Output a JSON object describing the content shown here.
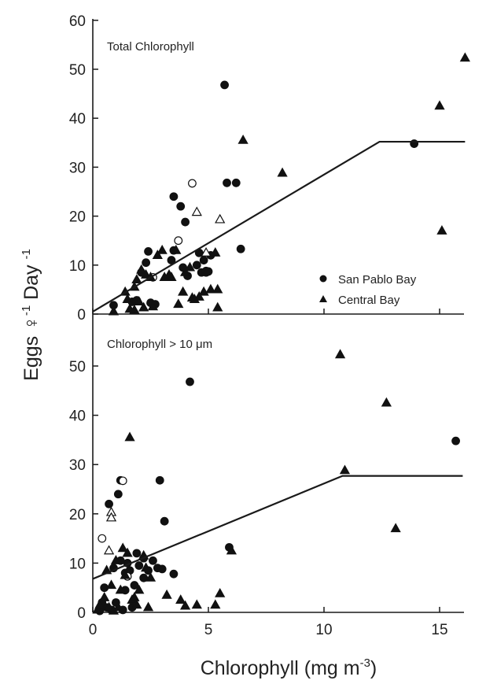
{
  "chart_data": [
    {
      "type": "scatter",
      "panel_label": "Total Chlorophyll",
      "xlim": [
        0,
        17
      ],
      "ylim": [
        0,
        60
      ],
      "y_ticks": [
        0,
        10,
        20,
        30,
        40,
        50,
        60
      ],
      "x_ticks": [
        0,
        5,
        10,
        15
      ],
      "legend": {
        "placement": "lower-right",
        "entries": [
          {
            "marker": "circle",
            "label": "San Pablo Bay"
          },
          {
            "marker": "triangle",
            "label": "Central Bay"
          }
        ]
      },
      "fit_line": [
        [
          0,
          0.5
        ],
        [
          12.4,
          35.2
        ],
        [
          16.1,
          35.2
        ]
      ],
      "series": [
        {
          "marker": "circle",
          "filled": true,
          "points": [
            [
              0.9,
              1.8
            ],
            [
              1.7,
              2.5
            ],
            [
              1.9,
              2.8
            ],
            [
              2.1,
              8.5
            ],
            [
              2.3,
              10.5
            ],
            [
              2.4,
              12.8
            ],
            [
              2.5,
              2.3
            ],
            [
              2.7,
              2.0
            ],
            [
              3.4,
              11.0
            ],
            [
              3.5,
              13.0
            ],
            [
              3.5,
              24.0
            ],
            [
              3.8,
              22.0
            ],
            [
              3.9,
              9.5
            ],
            [
              4.0,
              18.8
            ],
            [
              4.1,
              7.8
            ],
            [
              4.5,
              10.0
            ],
            [
              4.6,
              12.5
            ],
            [
              4.7,
              8.5
            ],
            [
              4.8,
              11.0
            ],
            [
              4.9,
              8.5
            ],
            [
              4.9,
              8.8
            ],
            [
              5.0,
              8.7
            ],
            [
              5.1,
              12.0
            ],
            [
              5.7,
              46.8
            ],
            [
              5.8,
              26.8
            ],
            [
              6.2,
              26.8
            ],
            [
              6.4,
              13.3
            ],
            [
              13.9,
              34.8
            ]
          ]
        },
        {
          "marker": "circle",
          "filled": false,
          "points": [
            [
              2.6,
              7.5
            ],
            [
              3.7,
              15.0
            ],
            [
              4.3,
              26.7
            ]
          ]
        },
        {
          "marker": "triangle",
          "filled": true,
          "points": [
            [
              0.9,
              0.5
            ],
            [
              1.4,
              4.5
            ],
            [
              1.5,
              3.0
            ],
            [
              1.6,
              1.0
            ],
            [
              1.8,
              0.8
            ],
            [
              1.8,
              5.5
            ],
            [
              1.9,
              7.0
            ],
            [
              2.0,
              2.5
            ],
            [
              2.1,
              9.0
            ],
            [
              2.2,
              1.3
            ],
            [
              2.3,
              8.0
            ],
            [
              2.5,
              7.5
            ],
            [
              2.6,
              1.5
            ],
            [
              2.8,
              12.0
            ],
            [
              3.0,
              13.0
            ],
            [
              3.1,
              7.5
            ],
            [
              3.3,
              8.0
            ],
            [
              3.4,
              7.5
            ],
            [
              3.6,
              13.0
            ],
            [
              3.7,
              2.0
            ],
            [
              3.9,
              4.5
            ],
            [
              4.0,
              8.5
            ],
            [
              4.2,
              9.5
            ],
            [
              4.3,
              3.3
            ],
            [
              4.4,
              3.0
            ],
            [
              4.6,
              3.5
            ],
            [
              4.8,
              4.5
            ],
            [
              5.1,
              5.0
            ],
            [
              5.3,
              12.5
            ],
            [
              5.4,
              1.3
            ],
            [
              5.4,
              5.0
            ],
            [
              6.5,
              35.5
            ],
            [
              8.2,
              28.8
            ],
            [
              15.0,
              42.5
            ],
            [
              15.1,
              17.0
            ],
            [
              16.1,
              52.3
            ]
          ]
        },
        {
          "marker": "triangle",
          "filled": false,
          "points": [
            [
              4.5,
              20.8
            ],
            [
              4.9,
              12.5
            ],
            [
              5.5,
              19.3
            ]
          ]
        }
      ]
    },
    {
      "type": "scatter",
      "panel_label_prefix": "Chlorophyll > 10 ",
      "panel_label_unit": "μm",
      "xlim": [
        0,
        17
      ],
      "ylim": [
        0,
        57
      ],
      "y_ticks": [
        0,
        10,
        20,
        30,
        40,
        50
      ],
      "x_ticks": [
        0,
        5,
        10,
        15
      ],
      "x_tick_labels": [
        "0",
        "5",
        "10",
        "15"
      ],
      "fit_line": [
        [
          0,
          6.8
        ],
        [
          10.8,
          27.7
        ],
        [
          16.0,
          27.7
        ]
      ],
      "series": [
        {
          "marker": "circle",
          "filled": true,
          "points": [
            [
              0.3,
              0.3
            ],
            [
              0.4,
              2.0
            ],
            [
              0.5,
              5.0
            ],
            [
              0.6,
              1.0
            ],
            [
              0.7,
              22.0
            ],
            [
              0.8,
              0.5
            ],
            [
              0.9,
              9.0
            ],
            [
              1.0,
              2.0
            ],
            [
              1.1,
              24.0
            ],
            [
              1.2,
              10.5
            ],
            [
              1.2,
              26.8
            ],
            [
              1.3,
              0.5
            ],
            [
              1.4,
              4.5
            ],
            [
              1.4,
              8.0
            ],
            [
              1.5,
              10.0
            ],
            [
              1.6,
              8.5
            ],
            [
              1.7,
              1.0
            ],
            [
              1.8,
              5.5
            ],
            [
              1.9,
              12.0
            ],
            [
              2.0,
              9.5
            ],
            [
              2.2,
              11.0
            ],
            [
              2.2,
              7.0
            ],
            [
              2.4,
              8.5
            ],
            [
              2.6,
              10.5
            ],
            [
              2.8,
              9.0
            ],
            [
              2.9,
              26.8
            ],
            [
              3.0,
              8.8
            ],
            [
              3.1,
              18.5
            ],
            [
              3.5,
              7.8
            ],
            [
              4.2,
              46.8
            ],
            [
              5.9,
              13.2
            ],
            [
              15.7,
              34.8
            ]
          ]
        },
        {
          "marker": "circle",
          "filled": false,
          "points": [
            [
              0.4,
              15.0
            ],
            [
              1.3,
              26.7
            ],
            [
              1.5,
              7.3
            ]
          ]
        },
        {
          "marker": "triangle",
          "filled": true,
          "points": [
            [
              0.2,
              0.5
            ],
            [
              0.3,
              1.5
            ],
            [
              0.5,
              3.0
            ],
            [
              0.6,
              8.5
            ],
            [
              0.7,
              1.0
            ],
            [
              0.8,
              5.5
            ],
            [
              0.9,
              0.3
            ],
            [
              1.0,
              10.5
            ],
            [
              1.1,
              1.0
            ],
            [
              1.2,
              4.5
            ],
            [
              1.3,
              13.0
            ],
            [
              1.4,
              7.5
            ],
            [
              1.5,
              12.0
            ],
            [
              1.6,
              35.5
            ],
            [
              1.7,
              2.5
            ],
            [
              1.8,
              3.0
            ],
            [
              1.9,
              1.5
            ],
            [
              2.0,
              4.5
            ],
            [
              2.2,
              11.5
            ],
            [
              2.3,
              9.0
            ],
            [
              2.4,
              1.0
            ],
            [
              2.5,
              7.0
            ],
            [
              3.2,
              3.5
            ],
            [
              3.8,
              2.5
            ],
            [
              4.0,
              1.3
            ],
            [
              4.5,
              1.5
            ],
            [
              5.3,
              1.5
            ],
            [
              5.5,
              3.8
            ],
            [
              6.0,
              12.5
            ],
            [
              10.7,
              52.3
            ],
            [
              10.9,
              28.8
            ],
            [
              12.7,
              42.5
            ],
            [
              13.1,
              17.0
            ]
          ]
        },
        {
          "marker": "triangle",
          "filled": false,
          "points": [
            [
              0.8,
              20.3
            ],
            [
              0.8,
              19.2
            ],
            [
              0.7,
              12.5
            ]
          ]
        }
      ]
    }
  ],
  "axes": {
    "y_label_main": "Eggs ",
    "y_label_symbol": "♀",
    "y_label_sup1": "-1",
    "y_label_day": " Day ",
    "y_label_sup2": "-1",
    "x_label_main": "Chlorophyll (mg m",
    "x_label_sup": "-3",
    "x_label_close": ")"
  }
}
